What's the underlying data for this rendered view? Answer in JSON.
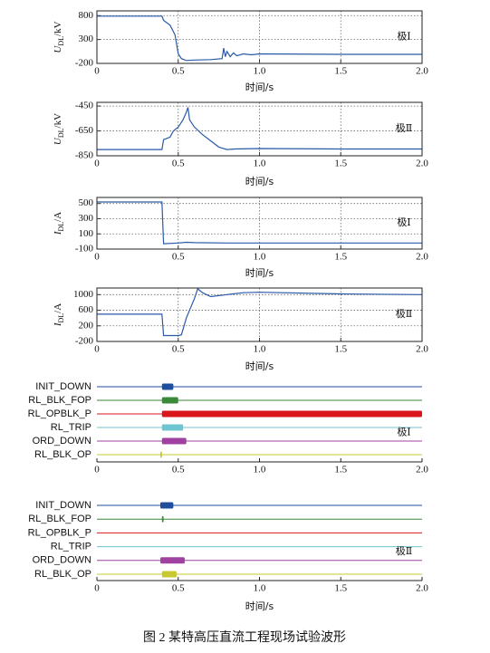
{
  "chart_data": [
    {
      "type": "line",
      "ylabel": [
        "U",
        "DL",
        "/kV"
      ],
      "xlabel": "时间/s",
      "annotation": "极Ⅰ",
      "grid": true,
      "xlim": [
        0,
        2
      ],
      "xticks": [
        0,
        0.5,
        {
          "value": 1,
          "label": "1.0"
        },
        1.5,
        {
          "value": 2,
          "label": "2.0"
        }
      ],
      "ylim": [
        -200,
        900
      ],
      "yticks": [
        800,
        300,
        -200
      ],
      "x": [
        0,
        0.4,
        0.41,
        0.45,
        0.48,
        0.5,
        0.52,
        0.55,
        0.6,
        0.7,
        0.77,
        0.78,
        0.79,
        0.8,
        0.82,
        0.84,
        0.86,
        0.9,
        0.95,
        1.0,
        1.5,
        2.0
      ],
      "series": [
        {
          "color": "#2a5aa8",
          "values": [
            790,
            790,
            700,
            600,
            400,
            0,
            -100,
            -140,
            -130,
            -120,
            -100,
            120,
            -60,
            50,
            -60,
            20,
            -40,
            0,
            -20,
            0,
            -10,
            -10
          ]
        }
      ]
    },
    {
      "type": "line",
      "ylabel": [
        "U",
        "DL",
        "/kV"
      ],
      "xlabel": "时间/s",
      "annotation": "极Ⅱ",
      "grid": true,
      "xlim": [
        0,
        2
      ],
      "xticks": [
        0,
        0.5,
        {
          "value": 1,
          "label": "1.0"
        },
        1.5,
        {
          "value": 2,
          "label": "2.0"
        }
      ],
      "ylim": [
        -850,
        -420
      ],
      "yticks": [
        -450,
        -650,
        -850
      ],
      "x": [
        0,
        0.4,
        0.41,
        0.45,
        0.47,
        0.5,
        0.53,
        0.55,
        0.56,
        0.57,
        0.6,
        0.65,
        0.7,
        0.75,
        0.8,
        0.85,
        1.0,
        1.5,
        2.0
      ],
      "series": [
        {
          "color": "#2a5aa8",
          "values": [
            -800,
            -800,
            -720,
            -700,
            -650,
            -620,
            -560,
            -500,
            -460,
            -560,
            -620,
            -680,
            -730,
            -780,
            -800,
            -795,
            -792,
            -795,
            -795
          ]
        }
      ]
    },
    {
      "type": "line",
      "ylabel": [
        "I",
        "DL",
        "/A"
      ],
      "xlabel": "时间/s",
      "annotation": "极Ⅰ",
      "grid": true,
      "xlim": [
        0,
        2
      ],
      "xticks": [
        0,
        0.5,
        {
          "value": 1,
          "label": "1.0"
        },
        1.5,
        {
          "value": 2,
          "label": "2.0"
        }
      ],
      "ylim": [
        -100,
        580
      ],
      "yticks": [
        500,
        300,
        100,
        -100
      ],
      "x": [
        0,
        0.4,
        0.41,
        0.5,
        0.55,
        0.6,
        0.8,
        1.0,
        2.0
      ],
      "series": [
        {
          "color": "#2a5aa8",
          "values": [
            520,
            520,
            -30,
            -20,
            -10,
            -15,
            -20,
            -20,
            -20
          ]
        }
      ]
    },
    {
      "type": "line",
      "ylabel": [
        "I",
        "DL",
        "/A"
      ],
      "xlabel": "时间/s",
      "annotation": "极Ⅱ",
      "grid": true,
      "xlim": [
        0,
        2
      ],
      "xticks": [
        0,
        0.5,
        {
          "value": 1,
          "label": "1.0"
        },
        1.5,
        {
          "value": 2,
          "label": "2.0"
        }
      ],
      "ylim": [
        -200,
        1170
      ],
      "yticks": [
        1000,
        600,
        200,
        -200
      ],
      "x": [
        0,
        0.4,
        0.41,
        0.5,
        0.52,
        0.55,
        0.6,
        0.62,
        0.65,
        0.7,
        0.8,
        0.9,
        1.0,
        1.5,
        2.0
      ],
      "series": [
        {
          "color": "#2a5aa8",
          "values": [
            500,
            500,
            -50,
            -50,
            -30,
            400,
            900,
            1150,
            1050,
            950,
            1000,
            1050,
            1060,
            1020,
            1000
          ]
        }
      ]
    },
    {
      "type": "timeline",
      "annotation": "极Ⅰ",
      "xlim": [
        0,
        2
      ],
      "xticks": [
        0,
        0.5,
        {
          "value": 1,
          "label": "1.0"
        },
        1.5,
        {
          "value": 2,
          "label": "2.0"
        }
      ],
      "signals": [
        {
          "name": "INIT_DOWN",
          "color": "#1f4e9c",
          "intervals": [
            [
              0.4,
              0.47
            ]
          ]
        },
        {
          "name": "RL_BLK_FOP",
          "color": "#3a8a3a",
          "intervals": [
            [
              0.4,
              0.5
            ]
          ]
        },
        {
          "name": "RL_OPBLK_P",
          "color": "#d9161c",
          "intervals": [
            [
              0.4,
              2.0
            ]
          ]
        },
        {
          "name": "RL_TRIP",
          "color": "#6cc5d0",
          "intervals": [
            [
              0.4,
              0.53
            ]
          ]
        },
        {
          "name": "ORD_DOWN",
          "color": "#a040a0",
          "intervals": [
            [
              0.4,
              0.55
            ]
          ]
        },
        {
          "name": "RL_BLK_OP",
          "color": "#c8c830",
          "intervals": [
            [
              0.39,
              0.4
            ]
          ]
        }
      ]
    },
    {
      "type": "timeline",
      "annotation": "极Ⅱ",
      "xlabel": "时间/s",
      "xlim": [
        0,
        2
      ],
      "xticks": [
        0,
        0.5,
        {
          "value": 1,
          "label": "1.0"
        },
        1.5,
        {
          "value": 2,
          "label": "2.0"
        }
      ],
      "signals": [
        {
          "name": "INIT_DOWN",
          "color": "#1f4e9c",
          "intervals": [
            [
              0.39,
              0.47
            ]
          ]
        },
        {
          "name": "RL_BLK_FOP",
          "color": "#3a8a3a",
          "intervals": [
            [
              0.4,
              0.41
            ]
          ]
        },
        {
          "name": "RL_OPBLK_P",
          "color": "#d9161c",
          "intervals": []
        },
        {
          "name": "RL_TRIP",
          "color": "#6cc5d0",
          "intervals": []
        },
        {
          "name": "ORD_DOWN",
          "color": "#a040a0",
          "intervals": [
            [
              0.39,
              0.54
            ]
          ]
        },
        {
          "name": "RL_BLK_OP",
          "color": "#c8c830",
          "intervals": [
            [
              0.4,
              0.49
            ]
          ]
        }
      ]
    }
  ],
  "caption": "图 2  某特高压直流工程现场试验波形"
}
